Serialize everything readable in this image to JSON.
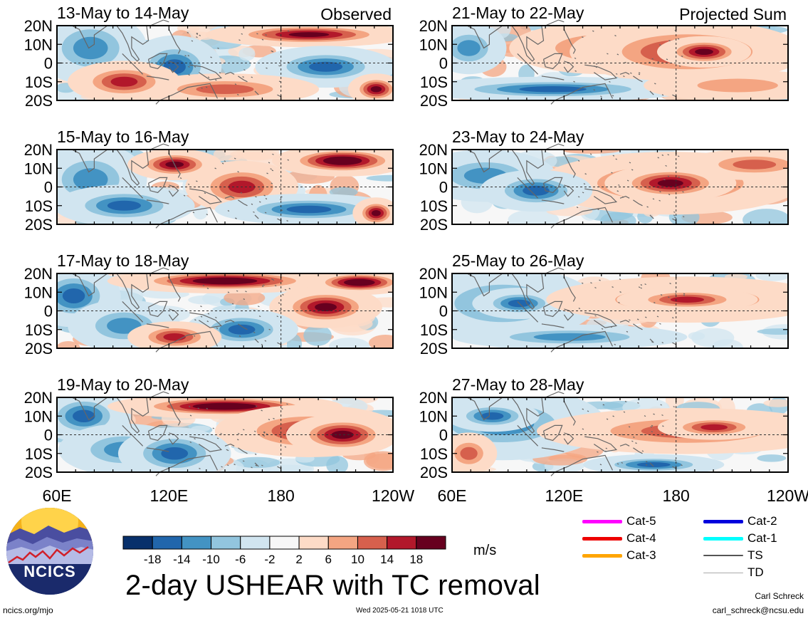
{
  "chart_data": {
    "type": "heatmap",
    "title": "2-day USHEAR with TC removal",
    "units": "m/s",
    "x_axis": {
      "ticks": [
        "60E",
        "120E",
        "180",
        "120W"
      ],
      "range": [
        60,
        240
      ]
    },
    "y_axis": {
      "ticks": [
        "20N",
        "10N",
        "0",
        "10S",
        "20S"
      ],
      "range": [
        -20,
        20
      ]
    },
    "columns": [
      "Observed",
      "Projected Sum"
    ],
    "panels": [
      {
        "period": "13-May to 14-May",
        "column": "Observed"
      },
      {
        "period": "15-May to 16-May",
        "column": "Observed"
      },
      {
        "period": "17-May to 18-May",
        "column": "Observed"
      },
      {
        "period": "19-May to 20-May",
        "column": "Observed"
      },
      {
        "period": "21-May to 22-May",
        "column": "Projected Sum"
      },
      {
        "period": "23-May to 24-May",
        "column": "Projected Sum"
      },
      {
        "period": "25-May to 26-May",
        "column": "Projected Sum"
      },
      {
        "period": "27-May to 28-May",
        "column": "Projected Sum"
      }
    ],
    "colorbar": {
      "labels": [
        "-18",
        "-14",
        "-10",
        "-6",
        "-2",
        "2",
        "6",
        "10",
        "14",
        "18"
      ],
      "colors": [
        "#08306b",
        "#2166ac",
        "#4393c3",
        "#92c5de",
        "#d1e5f0",
        "#f7f7f7",
        "#fddbc7",
        "#f4a582",
        "#d6604d",
        "#b2182b",
        "#67001f"
      ]
    },
    "track_legend": [
      {
        "label": "Cat-5",
        "color": "#ff00ff"
      },
      {
        "label": "Cat-4",
        "color": "#ee0000"
      },
      {
        "label": "Cat-3",
        "color": "#ffa500"
      },
      {
        "label": "Cat-2",
        "color": "#0000dd"
      },
      {
        "label": "Cat-1",
        "color": "#00ffff"
      },
      {
        "label": "TS",
        "color": "#555555"
      },
      {
        "label": "TD",
        "color": "#aaaaaa"
      }
    ]
  },
  "logo": {
    "text": "NCICS"
  },
  "footer": {
    "url": "ncics.org/mjo",
    "timestamp": "Wed 2025-05-21 1018 UTC",
    "author": "Carl Schreck",
    "email": "carl_schreck@ncsu.edu"
  }
}
